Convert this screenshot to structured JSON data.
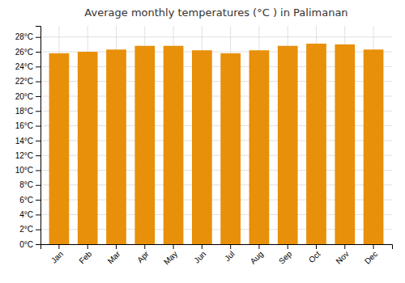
{
  "chart_data": {
    "type": "bar",
    "title": "Average monthly temperatures (°C ) in Palimanan",
    "categories": [
      "Jan",
      "Feb",
      "Mar",
      "Apr",
      "May",
      "Jun",
      "Jul",
      "Aug",
      "Sep",
      "Oct",
      "Nov",
      "Dec"
    ],
    "values": [
      25.8,
      26.0,
      26.3,
      26.8,
      26.8,
      26.2,
      25.8,
      26.2,
      26.8,
      27.1,
      27.0,
      26.3
    ],
    "color": "#E8900A",
    "ylim": [
      0,
      29.5
    ],
    "yticks": [
      {
        "value": 0,
        "label": "0°C"
      },
      {
        "value": 2,
        "label": "2°C"
      },
      {
        "value": 4,
        "label": "4°C"
      },
      {
        "value": 6,
        "label": "6°C"
      },
      {
        "value": 8,
        "label": "8°C"
      },
      {
        "value": 10,
        "label": "10°C"
      },
      {
        "value": 12,
        "label": "12°C"
      },
      {
        "value": 14,
        "label": "14°C"
      },
      {
        "value": 16,
        "label": "16°C"
      },
      {
        "value": 18,
        "label": "18°C"
      },
      {
        "value": 20,
        "label": "20°C"
      },
      {
        "value": 22,
        "label": "22°C"
      },
      {
        "value": 24,
        "label": "24°C"
      },
      {
        "value": 26,
        "label": "26°C"
      },
      {
        "value": 28,
        "label": "28°C"
      }
    ],
    "grid": true
  }
}
